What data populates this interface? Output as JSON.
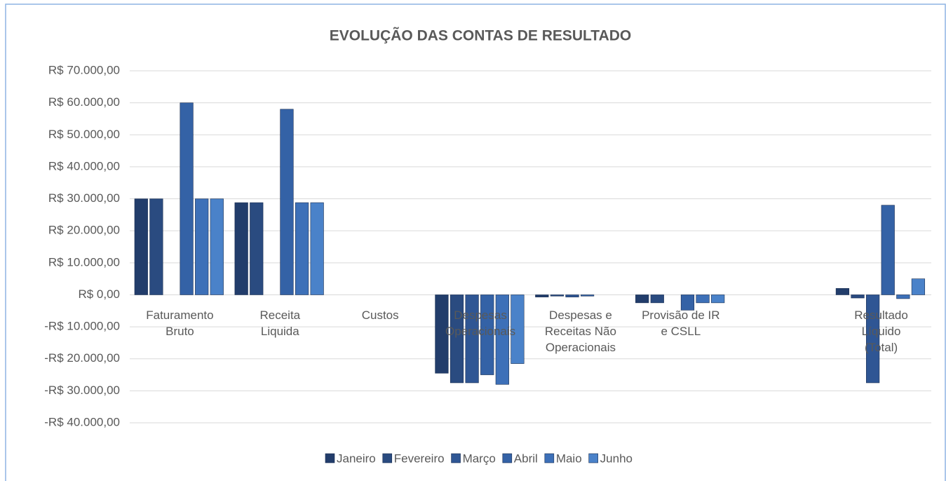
{
  "chart_data": {
    "type": "bar",
    "title": "EVOLUÇÃO DAS CONTAS DE RESULTADO",
    "categories": [
      "Faturamento Bruto",
      "Receita Liquida",
      "Custos",
      "Despesas Operacionais",
      "Despesas e Receitas Não Operacionais",
      "Provisão de IR e CSLL",
      null,
      "Resultado Líquido (Total)"
    ],
    "series": [
      {
        "name": "Janeiro",
        "color": "#223d6b",
        "values": [
          30000,
          28800,
          0,
          -24500,
          -700,
          -2500,
          0,
          2000
        ]
      },
      {
        "name": "Fevereiro",
        "color": "#2a4b80",
        "values": [
          30000,
          28800,
          0,
          -27500,
          -400,
          -2500,
          0,
          -1000
        ]
      },
      {
        "name": "Março",
        "color": "#2f5694",
        "values": [
          0,
          0,
          0,
          -27500,
          -700,
          0,
          0,
          -27500
        ]
      },
      {
        "name": "Abril",
        "color": "#3462a6",
        "values": [
          60000,
          58000,
          0,
          -25000,
          -400,
          -4800,
          0,
          28000
        ]
      },
      {
        "name": "Maio",
        "color": "#3d70b8",
        "values": [
          30000,
          28800,
          0,
          -28000,
          0,
          -2500,
          0,
          -1200
        ]
      },
      {
        "name": "Junho",
        "color": "#4a82c9",
        "values": [
          30000,
          28800,
          0,
          -21500,
          0,
          -2500,
          0,
          5000
        ]
      }
    ],
    "ylim": [
      -40000,
      70000
    ],
    "yticks": [
      {
        "value": -40000,
        "label": "-R$ 40.000,00"
      },
      {
        "value": -30000,
        "label": "-R$ 30.000,00"
      },
      {
        "value": -20000,
        "label": "-R$ 20.000,00"
      },
      {
        "value": -10000,
        "label": "-R$ 10.000,00"
      },
      {
        "value": 0,
        "label": "R$ 0,00"
      },
      {
        "value": 10000,
        "label": "R$ 10.000,00"
      },
      {
        "value": 20000,
        "label": "R$ 20.000,00"
      },
      {
        "value": 30000,
        "label": "R$ 30.000,00"
      },
      {
        "value": 40000,
        "label": "R$ 40.000,00"
      },
      {
        "value": 50000,
        "label": "R$ 50.000,00"
      },
      {
        "value": 60000,
        "label": "R$ 60.000,00"
      },
      {
        "value": 70000,
        "label": "R$ 70.000,00"
      }
    ],
    "grid": true,
    "legend": "bottom"
  }
}
